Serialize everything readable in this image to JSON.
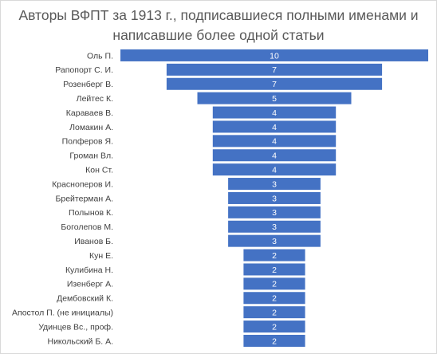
{
  "chart_data": {
    "type": "bar",
    "orientation": "horizontal",
    "title_lines": [
      "Авторы ВФПТ за 1913 г., подписавшиеся полными именами и",
      "написавшие более одной статьи"
    ],
    "categories": [
      "Оль П.",
      "Рапопорт С. И.",
      "Розенберг В.",
      "Лейтес К.",
      "Караваев В.",
      "Ломакин А.",
      "Полферов Я.",
      "Громан Вл.",
      "Кон Ст.",
      "Красноперов И.",
      "Брейтерман А.",
      "Полынов К.",
      "Боголепов М.",
      "Иванов Б.",
      "Кун Е.",
      "Кулибина Н.",
      "Изенберг А.",
      "Дембовский К.",
      "Апостол П. (не инициалы)",
      "Удинцев Вс., проф.",
      "Никольский Б. А."
    ],
    "values": [
      10,
      7,
      7,
      5,
      4,
      4,
      4,
      4,
      4,
      3,
      3,
      3,
      3,
      3,
      2,
      2,
      2,
      2,
      2,
      2,
      2
    ],
    "data_labels": true,
    "bar_alignment": "centered",
    "bar_color": "#4472c4",
    "grid": false,
    "legend": "none"
  }
}
